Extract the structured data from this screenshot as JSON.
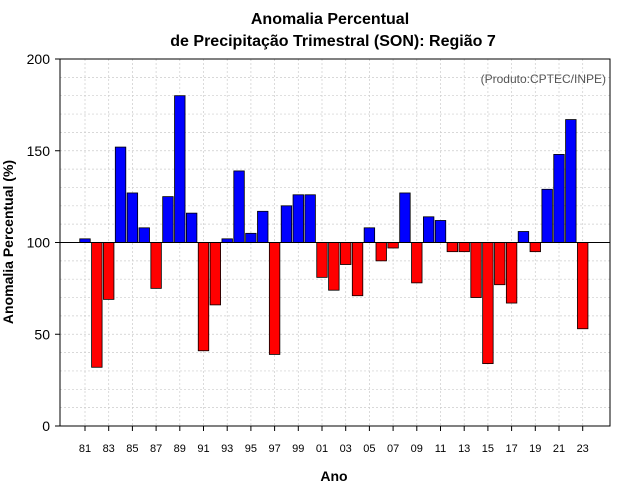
{
  "chart_data": {
    "type": "bar",
    "title_line1": "Anomalia Percentual",
    "title_line2": "de Precipitação Trimestral (SON): Região 7",
    "xlabel": "Ano",
    "ylabel": "Anomalia Percentual (%)",
    "credit": "(Produto:CPTEC/INPE)",
    "ylim": [
      0,
      200
    ],
    "yticks": [
      0,
      50,
      100,
      150,
      200
    ],
    "baseline": 100,
    "grid": true,
    "colors": {
      "above": "#0000ff",
      "below": "#ff0000",
      "edge": "#000000",
      "grid": "#cccccc"
    },
    "categories": [
      "81",
      "82",
      "83",
      "84",
      "85",
      "86",
      "87",
      "88",
      "89",
      "90",
      "91",
      "92",
      "93",
      "94",
      "95",
      "96",
      "97",
      "98",
      "99",
      "00",
      "01",
      "02",
      "03",
      "04",
      "05",
      "06",
      "07",
      "08",
      "09",
      "10",
      "11",
      "12",
      "13",
      "14",
      "15",
      "16",
      "17",
      "18",
      "19",
      "20",
      "21",
      "22",
      "23"
    ],
    "tick_labels": [
      "81",
      "83",
      "85",
      "87",
      "89",
      "91",
      "93",
      "95",
      "97",
      "99",
      "01",
      "03",
      "05",
      "07",
      "09",
      "11",
      "13",
      "15",
      "17",
      "19",
      "21",
      "23"
    ],
    "values": [
      102,
      32,
      69,
      152,
      127,
      108,
      75,
      125,
      180,
      116,
      41,
      66,
      102,
      139,
      105,
      117,
      39,
      120,
      126,
      126,
      81,
      74,
      88,
      71,
      108,
      90,
      97,
      127,
      78,
      114,
      112,
      95,
      95,
      70,
      34,
      77,
      67,
      106,
      95,
      129,
      148,
      167,
      53
    ]
  }
}
